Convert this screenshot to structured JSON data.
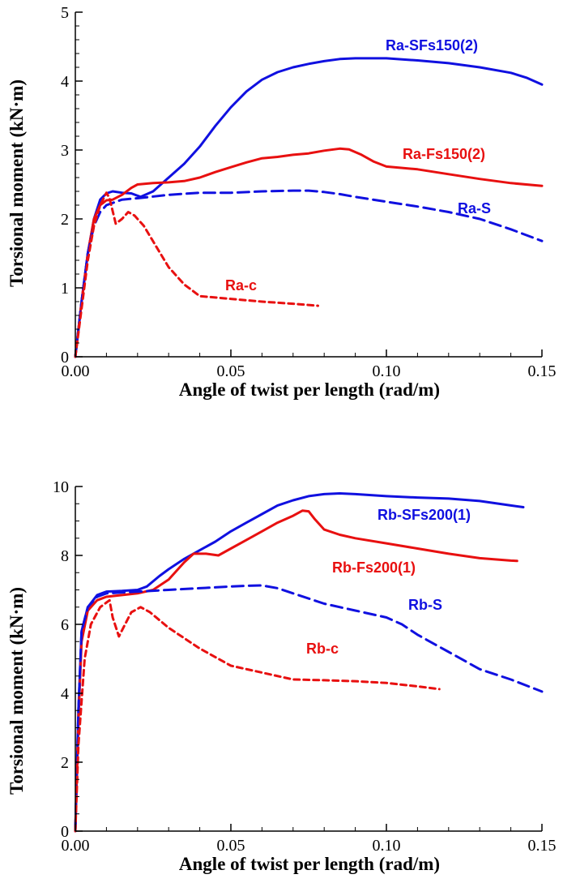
{
  "chart_data": [
    {
      "type": "line",
      "xlabel": "Angle of twist per length  (rad/m)",
      "ylabel": "Torsional moment  (kN·m)",
      "xlim": [
        0,
        0.15
      ],
      "ylim": [
        0,
        5
      ],
      "xticks": [
        "0.00",
        "0.05",
        "0.10",
        "0.15"
      ],
      "yticks": [
        "0",
        "1",
        "2",
        "3",
        "4",
        "5"
      ],
      "grid": false,
      "series": [
        {
          "name": "Ra-SFs150(2)",
          "color": "#1010e0",
          "style": "solid",
          "points": [
            [
              0,
              0
            ],
            [
              0.002,
              0.8
            ],
            [
              0.004,
              1.5
            ],
            [
              0.006,
              2.0
            ],
            [
              0.008,
              2.28
            ],
            [
              0.01,
              2.37
            ],
            [
              0.012,
              2.4
            ],
            [
              0.015,
              2.38
            ],
            [
              0.018,
              2.37
            ],
            [
              0.021,
              2.32
            ],
            [
              0.025,
              2.4
            ],
            [
              0.03,
              2.6
            ],
            [
              0.035,
              2.8
            ],
            [
              0.04,
              3.05
            ],
            [
              0.045,
              3.35
            ],
            [
              0.05,
              3.62
            ],
            [
              0.055,
              3.85
            ],
            [
              0.06,
              4.02
            ],
            [
              0.065,
              4.13
            ],
            [
              0.07,
              4.2
            ],
            [
              0.075,
              4.25
            ],
            [
              0.08,
              4.29
            ],
            [
              0.085,
              4.32
            ],
            [
              0.09,
              4.33
            ],
            [
              0.1,
              4.33
            ],
            [
              0.11,
              4.3
            ],
            [
              0.12,
              4.26
            ],
            [
              0.13,
              4.2
            ],
            [
              0.14,
              4.12
            ],
            [
              0.145,
              4.05
            ],
            [
              0.15,
              3.95
            ]
          ]
        },
        {
          "name": "Ra-Fs150(2)",
          "color": "#e81010",
          "style": "solid",
          "points": [
            [
              0,
              0
            ],
            [
              0.002,
              0.8
            ],
            [
              0.004,
              1.5
            ],
            [
              0.006,
              2.0
            ],
            [
              0.008,
              2.2
            ],
            [
              0.01,
              2.27
            ],
            [
              0.012,
              2.28
            ],
            [
              0.015,
              2.35
            ],
            [
              0.018,
              2.45
            ],
            [
              0.02,
              2.5
            ],
            [
              0.025,
              2.52
            ],
            [
              0.03,
              2.53
            ],
            [
              0.035,
              2.55
            ],
            [
              0.04,
              2.6
            ],
            [
              0.045,
              2.68
            ],
            [
              0.05,
              2.75
            ],
            [
              0.055,
              2.82
            ],
            [
              0.06,
              2.88
            ],
            [
              0.065,
              2.9
            ],
            [
              0.07,
              2.93
            ],
            [
              0.075,
              2.95
            ],
            [
              0.08,
              2.99
            ],
            [
              0.085,
              3.02
            ],
            [
              0.088,
              3.01
            ],
            [
              0.092,
              2.93
            ],
            [
              0.096,
              2.83
            ],
            [
              0.1,
              2.76
            ],
            [
              0.11,
              2.72
            ],
            [
              0.12,
              2.65
            ],
            [
              0.13,
              2.58
            ],
            [
              0.14,
              2.52
            ],
            [
              0.15,
              2.48
            ]
          ]
        },
        {
          "name": "Ra-S",
          "color": "#1010e0",
          "style": "dashed",
          "points": [
            [
              0,
              0
            ],
            [
              0.002,
              0.8
            ],
            [
              0.004,
              1.5
            ],
            [
              0.006,
              1.9
            ],
            [
              0.008,
              2.1
            ],
            [
              0.01,
              2.2
            ],
            [
              0.015,
              2.28
            ],
            [
              0.02,
              2.3
            ],
            [
              0.03,
              2.35
            ],
            [
              0.04,
              2.38
            ],
            [
              0.05,
              2.38
            ],
            [
              0.06,
              2.4
            ],
            [
              0.07,
              2.41
            ],
            [
              0.075,
              2.41
            ],
            [
              0.08,
              2.39
            ],
            [
              0.085,
              2.36
            ],
            [
              0.09,
              2.32
            ],
            [
              0.1,
              2.25
            ],
            [
              0.11,
              2.18
            ],
            [
              0.12,
              2.1
            ],
            [
              0.13,
              2.0
            ],
            [
              0.14,
              1.85
            ],
            [
              0.15,
              1.68
            ]
          ]
        },
        {
          "name": "Ra-c",
          "color": "#e81010",
          "style": "dashed",
          "points": [
            [
              0,
              0
            ],
            [
              0.002,
              0.7
            ],
            [
              0.004,
              1.4
            ],
            [
              0.006,
              1.9
            ],
            [
              0.008,
              2.2
            ],
            [
              0.01,
              2.38
            ],
            [
              0.011,
              2.3
            ],
            [
              0.013,
              1.93
            ],
            [
              0.015,
              2.0
            ],
            [
              0.017,
              2.1
            ],
            [
              0.019,
              2.05
            ],
            [
              0.022,
              1.9
            ],
            [
              0.026,
              1.6
            ],
            [
              0.03,
              1.3
            ],
            [
              0.035,
              1.05
            ],
            [
              0.04,
              0.88
            ],
            [
              0.05,
              0.84
            ],
            [
              0.06,
              0.8
            ],
            [
              0.07,
              0.77
            ],
            [
              0.078,
              0.74
            ]
          ]
        }
      ],
      "labels": [
        {
          "text": "Ra-SFs150(2)",
          "color": "#1010e0"
        },
        {
          "text": "Ra-Fs150(2)",
          "color": "#e81010"
        },
        {
          "text": "Ra-S",
          "color": "#1010e0"
        },
        {
          "text": "Ra-c",
          "color": "#e81010"
        }
      ]
    },
    {
      "type": "line",
      "xlabel": "Angle of twist per length  (rad/m)",
      "ylabel": "Torsional moment  (kN·m)",
      "xlim": [
        0,
        0.15
      ],
      "ylim": [
        0,
        10
      ],
      "xticks": [
        "0.00",
        "0.05",
        "0.10",
        "0.15"
      ],
      "yticks": [
        "0",
        "2",
        "4",
        "6",
        "8",
        "10"
      ],
      "grid": false,
      "series": [
        {
          "name": "Rb-SFs200(1)",
          "color": "#1010e0",
          "style": "solid",
          "points": [
            [
              0,
              0
            ],
            [
              0.001,
              3.5
            ],
            [
              0.002,
              5.8
            ],
            [
              0.004,
              6.5
            ],
            [
              0.007,
              6.85
            ],
            [
              0.01,
              6.95
            ],
            [
              0.015,
              6.97
            ],
            [
              0.02,
              7.0
            ],
            [
              0.023,
              7.1
            ],
            [
              0.027,
              7.4
            ],
            [
              0.03,
              7.6
            ],
            [
              0.035,
              7.9
            ],
            [
              0.04,
              8.15
            ],
            [
              0.045,
              8.4
            ],
            [
              0.05,
              8.7
            ],
            [
              0.055,
              8.95
            ],
            [
              0.06,
              9.2
            ],
            [
              0.065,
              9.45
            ],
            [
              0.07,
              9.6
            ],
            [
              0.075,
              9.72
            ],
            [
              0.08,
              9.78
            ],
            [
              0.085,
              9.8
            ],
            [
              0.09,
              9.78
            ],
            [
              0.1,
              9.72
            ],
            [
              0.11,
              9.68
            ],
            [
              0.12,
              9.65
            ],
            [
              0.13,
              9.58
            ],
            [
              0.14,
              9.45
            ],
            [
              0.144,
              9.4
            ]
          ]
        },
        {
          "name": "Rb-Fs200(1)",
          "color": "#e81010",
          "style": "solid",
          "points": [
            [
              0,
              0
            ],
            [
              0.001,
              3.2
            ],
            [
              0.002,
              5.5
            ],
            [
              0.004,
              6.4
            ],
            [
              0.007,
              6.7
            ],
            [
              0.01,
              6.8
            ],
            [
              0.015,
              6.85
            ],
            [
              0.02,
              6.9
            ],
            [
              0.025,
              7.0
            ],
            [
              0.03,
              7.3
            ],
            [
              0.035,
              7.8
            ],
            [
              0.038,
              8.05
            ],
            [
              0.042,
              8.05
            ],
            [
              0.046,
              8.0
            ],
            [
              0.05,
              8.2
            ],
            [
              0.055,
              8.45
            ],
            [
              0.06,
              8.7
            ],
            [
              0.065,
              8.95
            ],
            [
              0.07,
              9.15
            ],
            [
              0.073,
              9.3
            ],
            [
              0.075,
              9.28
            ],
            [
              0.077,
              9.05
            ],
            [
              0.08,
              8.75
            ],
            [
              0.085,
              8.6
            ],
            [
              0.09,
              8.5
            ],
            [
              0.1,
              8.35
            ],
            [
              0.11,
              8.2
            ],
            [
              0.12,
              8.05
            ],
            [
              0.13,
              7.92
            ],
            [
              0.14,
              7.85
            ],
            [
              0.142,
              7.84
            ]
          ]
        },
        {
          "name": "Rb-S",
          "color": "#1010e0",
          "style": "dashed",
          "points": [
            [
              0,
              0
            ],
            [
              0.001,
              3.5
            ],
            [
              0.002,
              5.8
            ],
            [
              0.004,
              6.5
            ],
            [
              0.007,
              6.8
            ],
            [
              0.01,
              6.9
            ],
            [
              0.02,
              6.95
            ],
            [
              0.03,
              7.0
            ],
            [
              0.04,
              7.05
            ],
            [
              0.05,
              7.1
            ],
            [
              0.055,
              7.12
            ],
            [
              0.06,
              7.13
            ],
            [
              0.065,
              7.05
            ],
            [
              0.07,
              6.9
            ],
            [
              0.08,
              6.6
            ],
            [
              0.09,
              6.4
            ],
            [
              0.1,
              6.2
            ],
            [
              0.105,
              6.0
            ],
            [
              0.11,
              5.7
            ],
            [
              0.12,
              5.2
            ],
            [
              0.13,
              4.7
            ],
            [
              0.14,
              4.4
            ],
            [
              0.15,
              4.05
            ]
          ]
        },
        {
          "name": "Rb-c",
          "color": "#e81010",
          "style": "dashed",
          "points": [
            [
              0,
              0
            ],
            [
              0.001,
              2.5
            ],
            [
              0.003,
              5.0
            ],
            [
              0.005,
              6.0
            ],
            [
              0.008,
              6.5
            ],
            [
              0.011,
              6.7
            ],
            [
              0.012,
              6.2
            ],
            [
              0.014,
              5.65
            ],
            [
              0.016,
              6.0
            ],
            [
              0.018,
              6.35
            ],
            [
              0.021,
              6.5
            ],
            [
              0.024,
              6.35
            ],
            [
              0.03,
              5.9
            ],
            [
              0.04,
              5.3
            ],
            [
              0.05,
              4.8
            ],
            [
              0.06,
              4.6
            ],
            [
              0.07,
              4.4
            ],
            [
              0.08,
              4.38
            ],
            [
              0.09,
              4.35
            ],
            [
              0.1,
              4.3
            ],
            [
              0.11,
              4.2
            ],
            [
              0.117,
              4.12
            ]
          ]
        }
      ],
      "labels": [
        {
          "text": "Rb-SFs200(1)",
          "color": "#1010e0"
        },
        {
          "text": "Rb-Fs200(1)",
          "color": "#e81010"
        },
        {
          "text": "Rb-S",
          "color": "#1010e0"
        },
        {
          "text": "Rb-c",
          "color": "#e81010"
        }
      ]
    }
  ]
}
